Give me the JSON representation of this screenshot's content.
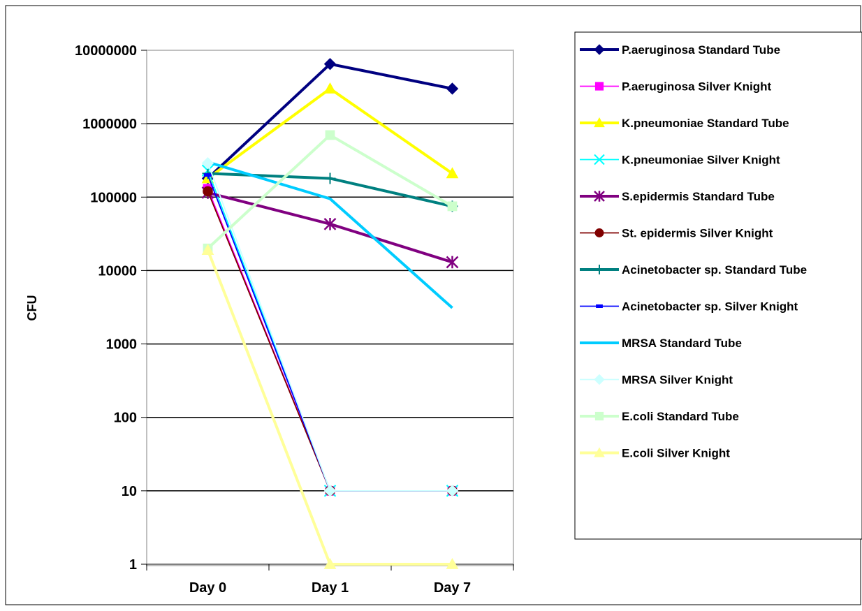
{
  "chart_data": {
    "type": "line",
    "ylabel": "CFU",
    "yscale": "log",
    "ylim": [
      1,
      10000000
    ],
    "yticks": [
      "1",
      "10",
      "100",
      "1000",
      "10000",
      "100000",
      "1000000",
      "10000000"
    ],
    "categories": [
      "Day 0",
      "Day 1",
      "Day 7"
    ],
    "grid": "horizontal major gridlines",
    "legend_position": "right",
    "series": [
      {
        "name": "P.aeruginosa Standard Tube",
        "values": [
          180000,
          6500000,
          3000000
        ],
        "color": "#000080",
        "marker": "diamond",
        "line": "thick"
      },
      {
        "name": "P.aeruginosa Silver Knight",
        "values": [
          130000,
          10,
          10
        ],
        "color": "#FF00FF",
        "marker": "square",
        "line": "thin"
      },
      {
        "name": "K.pneumoniae Standard Tube",
        "values": [
          180000,
          3000000,
          210000
        ],
        "color": "#FFFF00",
        "marker": "triangle",
        "line": "thick"
      },
      {
        "name": "K.pneumoniae Silver Knight",
        "values": [
          230000,
          10,
          10
        ],
        "color": "#00FFFF",
        "marker": "x",
        "line": "thin"
      },
      {
        "name": "S.epidermis Standard Tube",
        "values": [
          115000,
          43000,
          13000
        ],
        "color": "#800080",
        "marker": "asterisk",
        "line": "thick"
      },
      {
        "name": "St. epidermis Silver Knight",
        "values": [
          120000,
          10,
          10
        ],
        "color": "#800000",
        "marker": "circle",
        "line": "thin"
      },
      {
        "name": "Acinetobacter sp. Standard Tube",
        "values": [
          210000,
          180000,
          75000
        ],
        "color": "#008080",
        "marker": "plus",
        "line": "thick"
      },
      {
        "name": "Acinetobacter sp. Silver Knight",
        "values": [
          200000,
          10,
          10
        ],
        "color": "#0000FF",
        "marker": "dash",
        "line": "thin"
      },
      {
        "name": "MRSA Standard Tube",
        "values": [
          300000,
          95000,
          3100
        ],
        "color": "#00CCFF",
        "marker": "none",
        "line": "thick"
      },
      {
        "name": "MRSA Silver Knight",
        "values": [
          290000,
          10,
          10
        ],
        "color": "#CCFFFF",
        "marker": "diamond",
        "line": "thin"
      },
      {
        "name": "E.coli Standard Tube",
        "values": [
          20000,
          700000,
          75000
        ],
        "color": "#CCFFCC",
        "marker": "square",
        "line": "thick"
      },
      {
        "name": "E.coli Silver Knight",
        "values": [
          19000,
          1,
          1
        ],
        "color": "#FFFF99",
        "marker": "triangle",
        "line": "thick"
      }
    ]
  }
}
